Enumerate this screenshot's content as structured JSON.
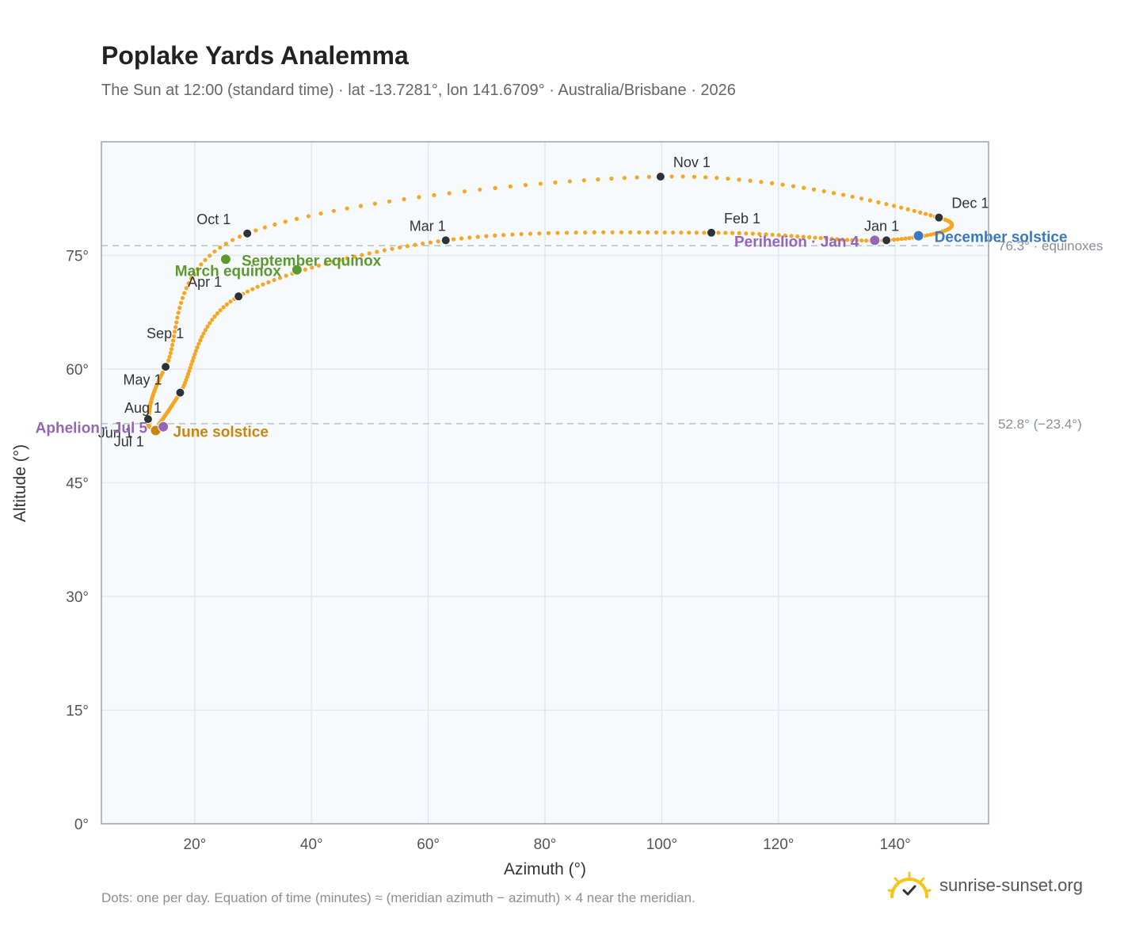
{
  "title": "Poplake Yards Analemma",
  "subtitle": "The Sun at 12:00 (standard time) · lat -13.7281°, lon 141.6709° · Australia/Brisbane · 2026",
  "footnote": "Dots: one per day. Equation of time (minutes) ≈ (meridian azimuth − azimuth) × 4 near the meridian.",
  "brand": {
    "name": "sunrise-sunset.org",
    "logo_icon": "sun-check-icon",
    "logo_color": "#f5c518"
  },
  "colors": {
    "path": "#f5a623",
    "month_marker": "#2d3138",
    "equinox": "#5a9a2e",
    "june_solstice": "#c8860b",
    "december_solstice": "#3a78c2",
    "apsis": "#9366b8",
    "reference_line": "#b8c0cc",
    "plot_background": "#f7fafd",
    "grid": "#e3e8ee"
  },
  "chart_data": {
    "type": "scatter",
    "xlabel": "Azimuth (°)",
    "ylabel": "Altitude (°)",
    "xlim": [
      4,
      156
    ],
    "ylim": [
      0,
      90
    ],
    "x_ticks": [
      20,
      40,
      60,
      80,
      100,
      120,
      140
    ],
    "x_tick_labels": [
      "20°",
      "40°",
      "60°",
      "80°",
      "100°",
      "120°",
      "140°"
    ],
    "y_ticks": [
      0,
      15,
      30,
      45,
      60,
      75
    ],
    "y_tick_labels": [
      "0°",
      "15°",
      "30°",
      "45°",
      "60°",
      "75°"
    ],
    "grid": true,
    "reference_lines": [
      {
        "y": 76.3,
        "label": "76.3° · equinoxes"
      },
      {
        "y": 52.8,
        "label": "52.8° (−23.4°)"
      }
    ],
    "month_markers": [
      {
        "label": "Jan 1",
        "azimuth": 138.5,
        "altitude": 77.0
      },
      {
        "label": "Feb 1",
        "azimuth": 108.5,
        "altitude": 78.0
      },
      {
        "label": "Mar 1",
        "azimuth": 63.0,
        "altitude": 77.0
      },
      {
        "label": "Apr 1",
        "azimuth": 27.5,
        "altitude": 69.6
      },
      {
        "label": "May 1",
        "azimuth": 17.5,
        "altitude": 56.9
      },
      {
        "label": "Jun 1",
        "azimuth": 13.2,
        "altitude": 52.0
      },
      {
        "label": "Jul 1",
        "azimuth": 13.2,
        "altitude": 52.1
      },
      {
        "label": "Aug 1",
        "azimuth": 12.0,
        "altitude": 53.4
      },
      {
        "label": "Sep 1",
        "azimuth": 15.0,
        "altitude": 60.3
      },
      {
        "label": "Oct 1",
        "azimuth": 29.0,
        "altitude": 77.9
      },
      {
        "label": "Nov 1",
        "azimuth": 99.8,
        "altitude": 85.4
      },
      {
        "label": "Dec 1",
        "azimuth": 147.5,
        "altitude": 80.0
      }
    ],
    "events": [
      {
        "label": "March equinox",
        "azimuth": 37.5,
        "altitude": 73.1,
        "kind": "equinox"
      },
      {
        "label": "September equinox",
        "azimuth": 25.3,
        "altitude": 74.5,
        "kind": "equinox"
      },
      {
        "label": "June solstice",
        "azimuth": 13.3,
        "altitude": 51.9,
        "kind": "june_solstice"
      },
      {
        "label": "December solstice",
        "azimuth": 144.0,
        "altitude": 77.6,
        "kind": "december_solstice"
      },
      {
        "label": "Aphelion · Jul 5",
        "azimuth": 14.6,
        "altitude": 52.4,
        "kind": "apsis"
      },
      {
        "label": "Perihelion · Jan 4",
        "azimuth": 136.5,
        "altitude": 77.0,
        "kind": "apsis"
      }
    ]
  }
}
